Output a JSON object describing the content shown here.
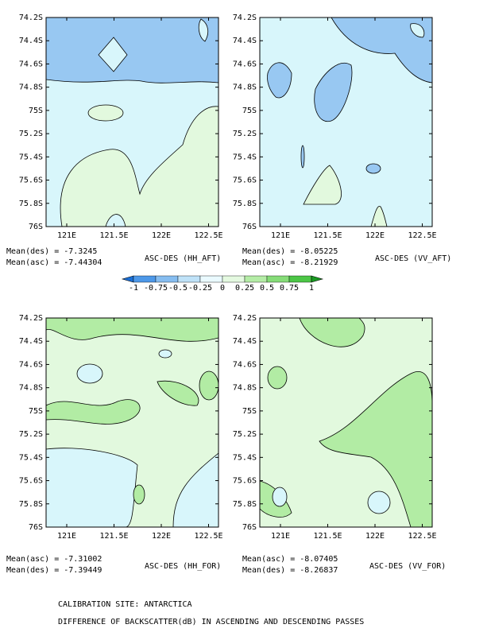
{
  "panels": [
    {
      "y_ticks": [
        "74.2S",
        "74.4S",
        "74.6S",
        "74.8S",
        "75S",
        "75.2S",
        "75.4S",
        "75.6S",
        "75.8S",
        "76S"
      ],
      "x_ticks": [
        "121E",
        "121.5E",
        "122E",
        "122.5E"
      ],
      "mean_lines": [
        "Mean(des) = -7.3245",
        "Mean(asc) = -7.44304"
      ],
      "label": "ASC-DES (HH_AFT)"
    },
    {
      "y_ticks": [
        "74.2S",
        "74.4S",
        "74.6S",
        "74.8S",
        "75S",
        "75.2S",
        "75.4S",
        "75.6S",
        "75.8S",
        "76S"
      ],
      "x_ticks": [
        "121E",
        "121.5E",
        "122E",
        "122.5E"
      ],
      "mean_lines": [
        "Mean(des) = -8.05225",
        "Mean(asc) = -8.21929"
      ],
      "label": "ASC-DES (VV_AFT)"
    },
    {
      "y_ticks": [
        "74.2S",
        "74.4S",
        "74.6S",
        "74.8S",
        "75S",
        "75.2S",
        "75.4S",
        "75.6S",
        "75.8S",
        "76S"
      ],
      "x_ticks": [
        "121E",
        "121.5E",
        "122E",
        "122.5E"
      ],
      "mean_lines": [
        "Mean(asc) = -7.31002",
        "Mean(des) = -7.39449"
      ],
      "label": "ASC-DES (HH_FOR)"
    },
    {
      "y_ticks": [
        "74.2S",
        "74.4S",
        "74.6S",
        "74.8S",
        "75S",
        "75.2S",
        "75.4S",
        "75.6S",
        "75.8S",
        "76S"
      ],
      "x_ticks": [
        "121E",
        "121.5E",
        "122E",
        "122.5E"
      ],
      "mean_lines": [
        "Mean(asc) = -8.07405",
        "Mean(des) = -8.26837"
      ],
      "label": "ASC-DES (VV_FOR)"
    }
  ],
  "colorbar": {
    "labels": [
      "-1",
      "-0.75",
      "-0.5",
      "-0.25",
      "0",
      "0.25",
      "0.5",
      "0.75",
      "1"
    ]
  },
  "footer": [
    "CALIBRATION SITE: ANTARCTICA",
    "DIFFERENCE OF BACKSCATTER(dB) IN ASCENDING AND DESCENDING PASSES"
  ]
}
